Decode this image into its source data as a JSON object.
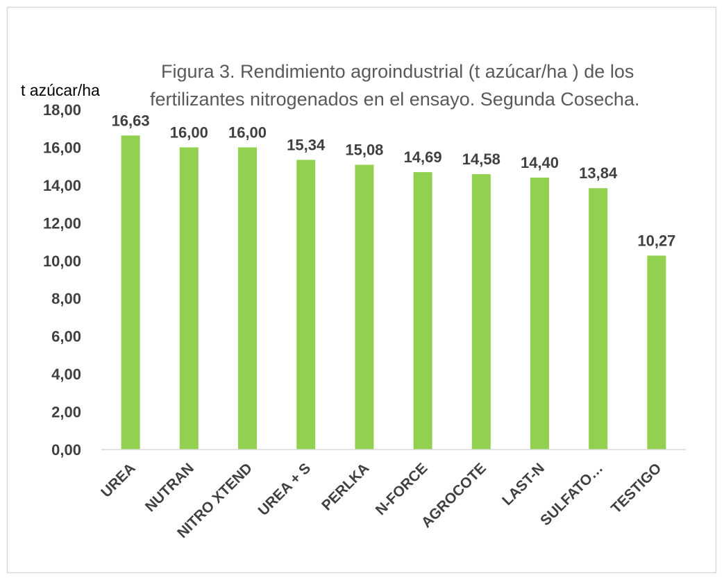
{
  "chart_data": {
    "type": "bar",
    "title_lines": [
      "Figura 3. Rendimiento agroindustrial (t azúcar/ha ) de los",
      "fertilizantes nitrogenados en el ensayo. Segunda Cosecha."
    ],
    "ylabel": "t azúcar/ha",
    "xlabel": "",
    "categories": [
      "UREA",
      "NUTRAN",
      "NITRO XTEND",
      "UREA + S",
      "PERLKA",
      "N-FORCE",
      "AGROCOTE",
      "LAST-N",
      "SULFATO…",
      "TESTIGO"
    ],
    "values": [
      16.63,
      16.0,
      16.0,
      15.34,
      15.08,
      14.69,
      14.58,
      14.4,
      13.84,
      10.27
    ],
    "data_labels": [
      "16,63",
      "16,00",
      "16,00",
      "15,34",
      "15,08",
      "14,69",
      "14,58",
      "14,40",
      "13,84",
      "10,27"
    ],
    "ylim": [
      0,
      18
    ],
    "y_ticks": [
      0,
      2,
      4,
      6,
      8,
      10,
      12,
      14,
      16,
      18
    ],
    "y_tick_labels": [
      "0,00",
      "2,00",
      "4,00",
      "6,00",
      "8,00",
      "10,00",
      "12,00",
      "14,00",
      "16,00",
      "18,00"
    ],
    "grid": false,
    "legend": "none",
    "bar_color": "#92D050",
    "axis_color": "#D9D9D9",
    "border_color": "#D9D9D9"
  }
}
